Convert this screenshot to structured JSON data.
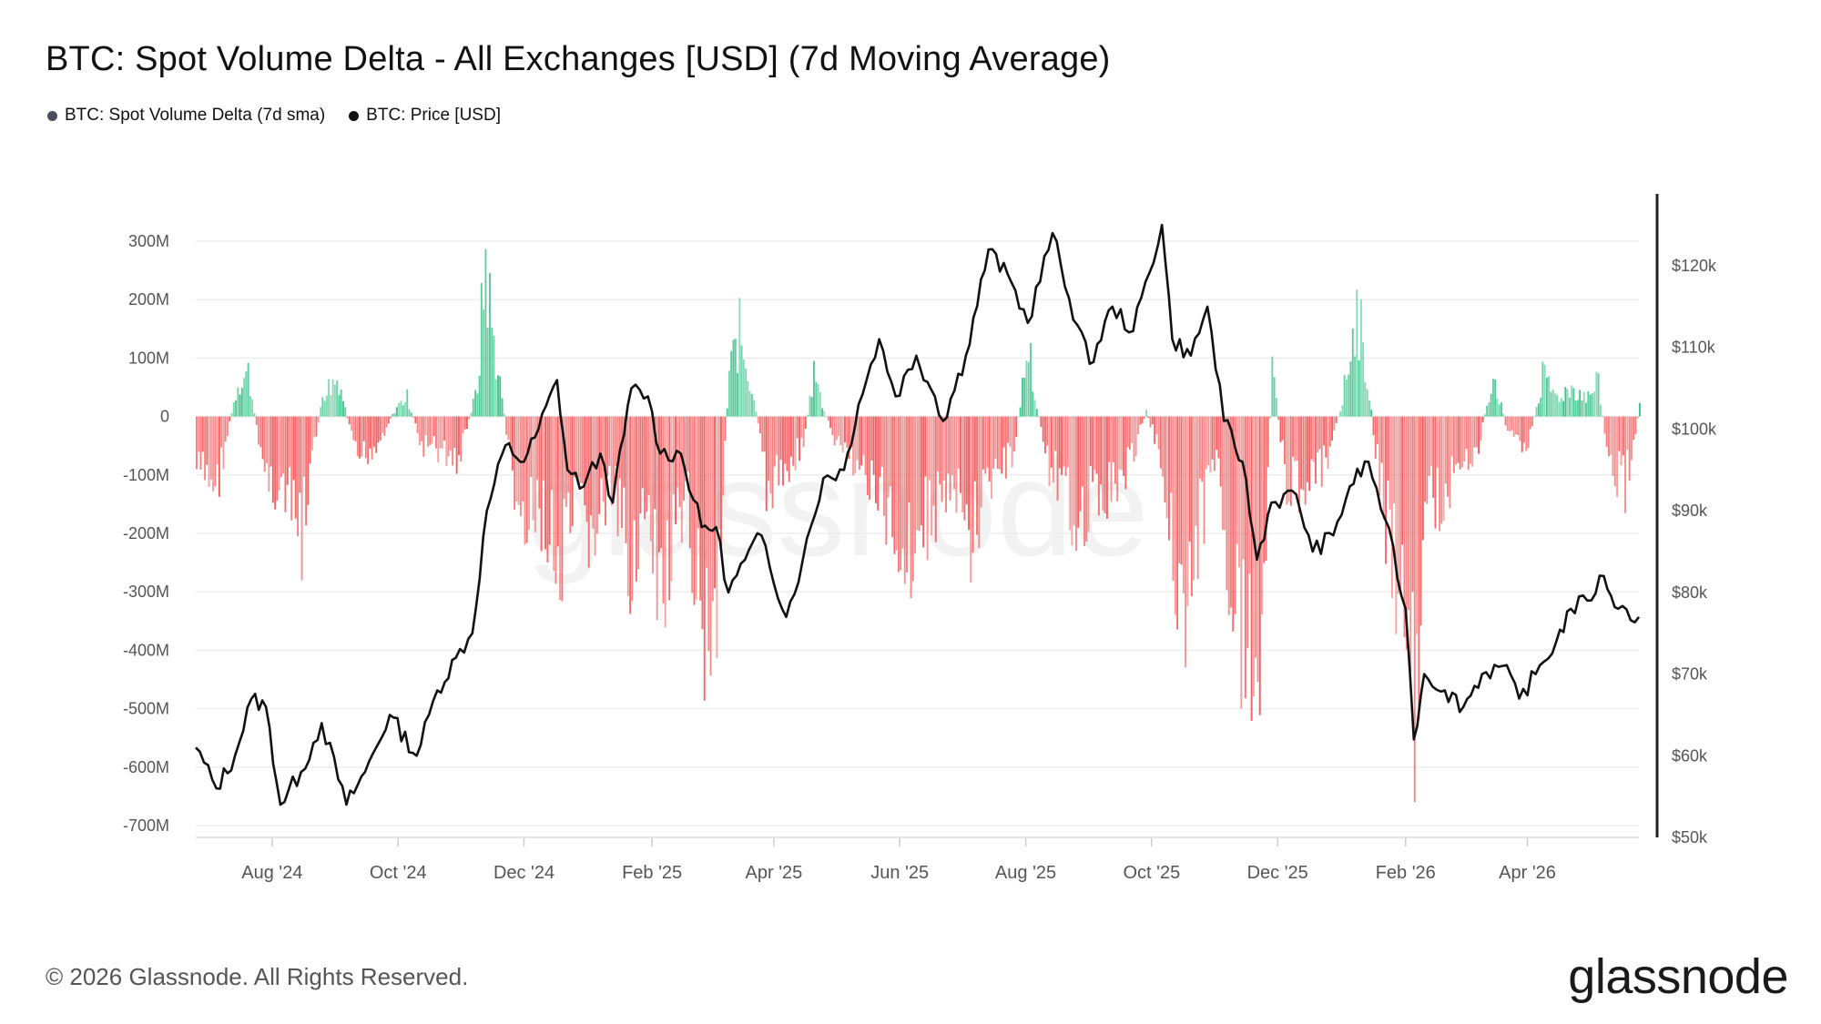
{
  "header": {
    "title": "BTC: Spot Volume Delta - All Exchanges [USD] (7d Moving Average)"
  },
  "legend": {
    "items": [
      {
        "label": "BTC: Spot Volume Delta (7d sma)",
        "color": "#4a4f5c"
      },
      {
        "label": "BTC: Price [USD]",
        "color": "#111111"
      }
    ]
  },
  "footer": {
    "copyright": "© 2026 Glassnode. All Rights Reserved.",
    "brand": "glassnode",
    "watermark": "glassnode"
  },
  "colors": {
    "positive_bar": "#3cc38a",
    "negative_bar": "#f25c5c",
    "price_line": "#111111",
    "grid": "#eeeeee"
  },
  "chart_data": {
    "type": "bar",
    "series": [
      {
        "name": "BTC: Spot Volume Delta (7d sma)",
        "type": "bar",
        "axis": "left",
        "unit": "USD"
      },
      {
        "name": "BTC: Price [USD]",
        "type": "line",
        "axis": "right",
        "unit": "USD"
      }
    ],
    "x_range": [
      "2024-06-25",
      "2026-05-25"
    ],
    "x_ticks": [
      "Aug '24",
      "Oct '24",
      "Dec '24",
      "Feb '25",
      "Apr '25",
      "Jun '25",
      "Aug '25",
      "Oct '25",
      "Dec '25",
      "Feb '26",
      "Apr '26"
    ],
    "left_axis": {
      "ticks": [
        "300M",
        "200M",
        "100M",
        "0",
        "-100M",
        "-200M",
        "-300M",
        "-400M",
        "-500M",
        "-600M",
        "-700M"
      ],
      "range": [
        -720,
        330
      ],
      "unit_scale": "millions USD"
    },
    "right_axis": {
      "ticks": [
        "$120k",
        "$110k",
        "$100k",
        "$90k",
        "$80k",
        "$70k",
        "$60k",
        "$50k"
      ],
      "range": [
        50,
        128
      ],
      "unit_scale": "thousands USD"
    },
    "grid": true,
    "legend_position": "top-left",
    "volume_delta_points": [
      [
        "2024-06-25",
        -110
      ],
      [
        "2024-07-05",
        -140
      ],
      [
        "2024-07-15",
        70
      ],
      [
        "2024-07-20",
        90
      ],
      [
        "2024-07-28",
        -120
      ],
      [
        "2024-08-05",
        -150
      ],
      [
        "2024-08-15",
        -250
      ],
      [
        "2024-08-25",
        50
      ],
      [
        "2024-09-02",
        80
      ],
      [
        "2024-09-10",
        -90
      ],
      [
        "2024-09-20",
        -60
      ],
      [
        "2024-09-30",
        20
      ],
      [
        "2024-10-05",
        40
      ],
      [
        "2024-10-12",
        -60
      ],
      [
        "2024-10-20",
        -70
      ],
      [
        "2024-10-30",
        -90
      ],
      [
        "2024-11-08",
        60
      ],
      [
        "2024-11-12",
        330
      ],
      [
        "2024-11-15",
        180
      ],
      [
        "2024-11-20",
        40
      ],
      [
        "2024-11-25",
        -130
      ],
      [
        "2024-12-01",
        -250
      ],
      [
        "2024-12-10",
        -190
      ],
      [
        "2024-12-18",
        -350
      ],
      [
        "2024-12-25",
        -200
      ],
      [
        "2025-01-03",
        -240
      ],
      [
        "2025-01-12",
        -150
      ],
      [
        "2025-01-20",
        -300
      ],
      [
        "2025-01-28",
        -200
      ],
      [
        "2025-02-03",
        -380
      ],
      [
        "2025-02-10",
        -300
      ],
      [
        "2025-02-18",
        -200
      ],
      [
        "2025-02-25",
        -410
      ],
      [
        "2025-03-03",
        -430
      ],
      [
        "2025-03-10",
        90
      ],
      [
        "2025-03-15",
        170
      ],
      [
        "2025-03-22",
        40
      ],
      [
        "2025-03-28",
        -150
      ],
      [
        "2025-04-05",
        -120
      ],
      [
        "2025-04-15",
        -50
      ],
      [
        "2025-04-20",
        90
      ],
      [
        "2025-04-25",
        10
      ],
      [
        "2025-05-01",
        -60
      ],
      [
        "2025-05-08",
        -80
      ],
      [
        "2025-05-15",
        -120
      ],
      [
        "2025-05-25",
        -200
      ],
      [
        "2025-06-05",
        -280
      ],
      [
        "2025-06-15",
        -200
      ],
      [
        "2025-06-25",
        -150
      ],
      [
        "2025-07-05",
        -250
      ],
      [
        "2025-07-15",
        -120
      ],
      [
        "2025-07-25",
        -90
      ],
      [
        "2025-08-02",
        150
      ],
      [
        "2025-08-05",
        40
      ],
      [
        "2025-08-12",
        -100
      ],
      [
        "2025-08-22",
        -200
      ],
      [
        "2025-09-01",
        -180
      ],
      [
        "2025-09-10",
        -150
      ],
      [
        "2025-09-20",
        -100
      ],
      [
        "2025-09-28",
        10
      ],
      [
        "2025-10-05",
        -80
      ],
      [
        "2025-10-12",
        -300
      ],
      [
        "2025-10-18",
        -400
      ],
      [
        "2025-10-25",
        -200
      ],
      [
        "2025-11-02",
        -80
      ],
      [
        "2025-11-10",
        -420
      ],
      [
        "2025-11-18",
        -500
      ],
      [
        "2025-11-22",
        -520
      ],
      [
        "2025-11-28",
        100
      ],
      [
        "2025-12-05",
        -150
      ],
      [
        "2025-12-15",
        -130
      ],
      [
        "2025-12-25",
        -100
      ],
      [
        "2026-01-02",
        60
      ],
      [
        "2026-01-08",
        220
      ],
      [
        "2026-01-12",
        120
      ],
      [
        "2026-01-18",
        -100
      ],
      [
        "2026-01-25",
        -300
      ],
      [
        "2026-02-01",
        -400
      ],
      [
        "2026-02-05",
        -670
      ],
      [
        "2026-02-10",
        -200
      ],
      [
        "2026-02-20",
        -150
      ],
      [
        "2026-03-01",
        -110
      ],
      [
        "2026-03-08",
        -60
      ],
      [
        "2026-03-15",
        90
      ],
      [
        "2026-03-22",
        -30
      ],
      [
        "2026-04-01",
        -60
      ],
      [
        "2026-04-08",
        80
      ],
      [
        "2026-04-15",
        40
      ],
      [
        "2026-04-22",
        60
      ],
      [
        "2026-04-30",
        40
      ],
      [
        "2026-05-05",
        70
      ],
      [
        "2026-05-10",
        -100
      ],
      [
        "2026-05-18",
        -140
      ],
      [
        "2026-05-25",
        20
      ]
    ],
    "price_points": [
      [
        "2024-06-25",
        61
      ],
      [
        "2024-07-05",
        56
      ],
      [
        "2024-07-14",
        60
      ],
      [
        "2024-07-22",
        67
      ],
      [
        "2024-07-29",
        66
      ],
      [
        "2024-08-05",
        54
      ],
      [
        "2024-08-15",
        58
      ],
      [
        "2024-08-25",
        64
      ],
      [
        "2024-09-06",
        54
      ],
      [
        "2024-09-15",
        58
      ],
      [
        "2024-09-27",
        65
      ],
      [
        "2024-10-10",
        60
      ],
      [
        "2024-10-20",
        68
      ],
      [
        "2024-10-29",
        72
      ],
      [
        "2024-11-06",
        75
      ],
      [
        "2024-11-13",
        90
      ],
      [
        "2024-11-22",
        98
      ],
      [
        "2024-12-01",
        96
      ],
      [
        "2024-12-08",
        100
      ],
      [
        "2024-12-17",
        106
      ],
      [
        "2024-12-22",
        95
      ],
      [
        "2024-12-30",
        93
      ],
      [
        "2025-01-07",
        97
      ],
      [
        "2025-01-13",
        91
      ],
      [
        "2025-01-22",
        105
      ],
      [
        "2025-01-30",
        104
      ],
      [
        "2025-02-05",
        97
      ],
      [
        "2025-02-15",
        97
      ],
      [
        "2025-02-25",
        88
      ],
      [
        "2025-03-04",
        88
      ],
      [
        "2025-03-10",
        80
      ],
      [
        "2025-03-18",
        84
      ],
      [
        "2025-03-26",
        87
      ],
      [
        "2025-04-07",
        77
      ],
      [
        "2025-04-15",
        84
      ],
      [
        "2025-04-25",
        94
      ],
      [
        "2025-05-05",
        95
      ],
      [
        "2025-05-12",
        103
      ],
      [
        "2025-05-22",
        111
      ],
      [
        "2025-05-30",
        104
      ],
      [
        "2025-06-09",
        109
      ],
      [
        "2025-06-18",
        104
      ],
      [
        "2025-06-22",
        101
      ],
      [
        "2025-07-03",
        109
      ],
      [
        "2025-07-14",
        122
      ],
      [
        "2025-07-25",
        118
      ],
      [
        "2025-08-02",
        113
      ],
      [
        "2025-08-14",
        124
      ],
      [
        "2025-08-22",
        116
      ],
      [
        "2025-09-01",
        108
      ],
      [
        "2025-09-12",
        115
      ],
      [
        "2025-09-22",
        112
      ],
      [
        "2025-10-06",
        125
      ],
      [
        "2025-10-11",
        111
      ],
      [
        "2025-10-20",
        109
      ],
      [
        "2025-10-28",
        115
      ],
      [
        "2025-11-05",
        101
      ],
      [
        "2025-11-14",
        96
      ],
      [
        "2025-11-21",
        84
      ],
      [
        "2025-11-28",
        91
      ],
      [
        "2025-12-10",
        92
      ],
      [
        "2025-12-18",
        85
      ],
      [
        "2025-12-28",
        87
      ],
      [
        "2026-01-05",
        93
      ],
      [
        "2026-01-14",
        96
      ],
      [
        "2026-01-22",
        89
      ],
      [
        "2026-02-01",
        78
      ],
      [
        "2026-02-05",
        62
      ],
      [
        "2026-02-10",
        70
      ],
      [
        "2026-02-20",
        68
      ],
      [
        "2026-03-01",
        66
      ],
      [
        "2026-03-10",
        70
      ],
      [
        "2026-03-20",
        71
      ],
      [
        "2026-03-28",
        67
      ],
      [
        "2026-04-05",
        70
      ],
      [
        "2026-04-15",
        74
      ],
      [
        "2026-04-22",
        78
      ],
      [
        "2026-04-30",
        79
      ],
      [
        "2026-05-08",
        82
      ],
      [
        "2026-05-15",
        78
      ],
      [
        "2026-05-25",
        77
      ]
    ]
  }
}
